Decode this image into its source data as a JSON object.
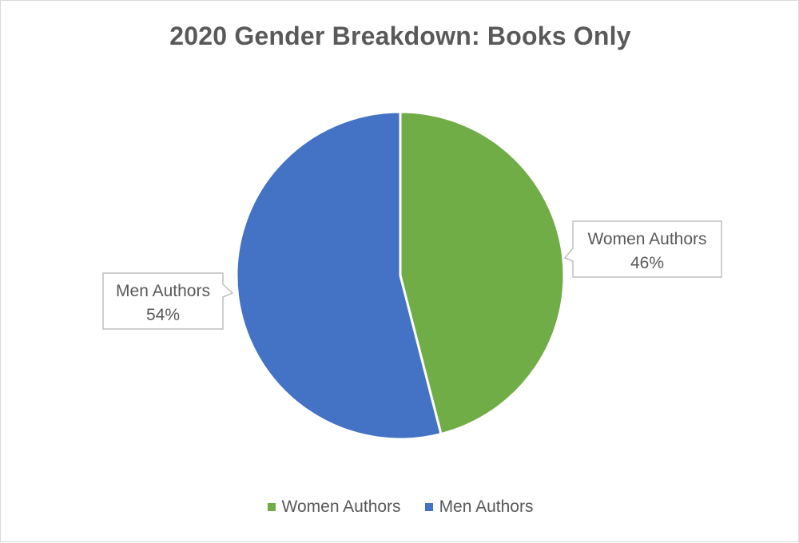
{
  "chart_data": {
    "type": "pie",
    "title": "2020 Gender Breakdown: Books Only",
    "legend_position": "bottom",
    "slices": [
      {
        "label": "Women Authors",
        "value": 46,
        "display": "46%",
        "color": "#70ad47",
        "label_side": "right"
      },
      {
        "label": "Men Authors",
        "value": 54,
        "display": "54%",
        "color": "#4472c4",
        "label_side": "left"
      }
    ]
  }
}
